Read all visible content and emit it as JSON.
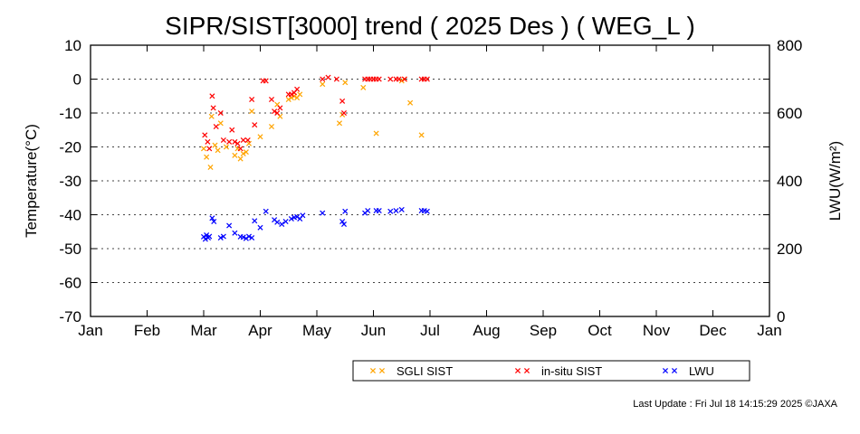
{
  "chart_data": {
    "type": "scatter",
    "title": "SIPR/SIST[3000] trend ( 2025 Des ) ( WEG_L )",
    "ylabel_left": "Temperature(°C)",
    "ylabel_right": "LWU(W/m²)",
    "ylim_left": [
      -70,
      10
    ],
    "ylim_right": [
      0,
      800
    ],
    "yticks_left": [
      10,
      0,
      -10,
      -20,
      -30,
      -40,
      -50,
      -60,
      -70
    ],
    "yticks_right": [
      800,
      600,
      400,
      200,
      0
    ],
    "x_ticks": [
      "Jan",
      "Feb",
      "Mar",
      "Apr",
      "May",
      "Jun",
      "Jul",
      "Aug",
      "Sep",
      "Oct",
      "Nov",
      "Dec",
      "Jan"
    ],
    "grid": "horizontal dotted",
    "legend": [
      "SGLI SIST",
      "in-situ SIST",
      "LWU"
    ],
    "legend_position": "bottom-right",
    "series": [
      {
        "name": "SGLI SIST",
        "color": "#ffa500",
        "axis": "left",
        "points": [
          [
            2.0,
            -20.5
          ],
          [
            2.05,
            -23.0
          ],
          [
            2.12,
            -26.0
          ],
          [
            2.14,
            -11.0
          ],
          [
            2.2,
            -19.5
          ],
          [
            2.25,
            -21.0
          ],
          [
            2.3,
            -13.0
          ],
          [
            2.4,
            -20.0
          ],
          [
            2.55,
            -22.5
          ],
          [
            2.6,
            -20.5
          ],
          [
            2.65,
            -23.5
          ],
          [
            2.7,
            -22.0
          ],
          [
            2.75,
            -21.5
          ],
          [
            2.8,
            -19.0
          ],
          [
            2.85,
            -9.5
          ],
          [
            3.0,
            -17.0
          ],
          [
            3.2,
            -14.0
          ],
          [
            3.3,
            -7.5
          ],
          [
            3.35,
            -11.0
          ],
          [
            3.5,
            -6.0
          ],
          [
            3.55,
            -5.5
          ],
          [
            3.6,
            -5.0
          ],
          [
            3.65,
            -5.5
          ],
          [
            3.7,
            -4.5
          ],
          [
            4.1,
            -1.5
          ],
          [
            4.4,
            -13.0
          ],
          [
            4.45,
            -10.5
          ],
          [
            4.5,
            -1.0
          ],
          [
            4.82,
            -2.5
          ],
          [
            5.05,
            -16.0
          ],
          [
            5.5,
            -0.5
          ],
          [
            5.55,
            0.0
          ],
          [
            5.65,
            -7.0
          ],
          [
            5.85,
            -16.5
          ]
        ]
      },
      {
        "name": "in-situ SIST",
        "color": "#ff0000",
        "axis": "left",
        "points": [
          [
            2.02,
            -16.5
          ],
          [
            2.07,
            -18.5
          ],
          [
            2.1,
            -20.5
          ],
          [
            2.15,
            -5.0
          ],
          [
            2.17,
            -8.5
          ],
          [
            2.22,
            -14.0
          ],
          [
            2.3,
            -10.0
          ],
          [
            2.35,
            -18.0
          ],
          [
            2.45,
            -18.5
          ],
          [
            2.5,
            -15.0
          ],
          [
            2.55,
            -18.5
          ],
          [
            2.6,
            -19.0
          ],
          [
            2.65,
            -20.5
          ],
          [
            2.7,
            -18.0
          ],
          [
            2.78,
            -18.0
          ],
          [
            2.85,
            -6.0
          ],
          [
            2.9,
            -13.5
          ],
          [
            3.05,
            -0.5
          ],
          [
            3.1,
            -0.5
          ],
          [
            3.2,
            -6.0
          ],
          [
            3.25,
            -9.5
          ],
          [
            3.3,
            -10.0
          ],
          [
            3.35,
            -8.5
          ],
          [
            3.5,
            -4.5
          ],
          [
            3.55,
            -4.5
          ],
          [
            3.6,
            -4.0
          ],
          [
            3.65,
            -3.0
          ],
          [
            4.1,
            0.0
          ],
          [
            4.2,
            0.5
          ],
          [
            4.35,
            0.0
          ],
          [
            4.45,
            -6.5
          ],
          [
            4.48,
            -10.0
          ],
          [
            4.85,
            0.0
          ],
          [
            4.9,
            0.0
          ],
          [
            4.95,
            0.0
          ],
          [
            5.0,
            0.0
          ],
          [
            5.05,
            0.0
          ],
          [
            5.1,
            0.0
          ],
          [
            5.3,
            0.0
          ],
          [
            5.4,
            0.0
          ],
          [
            5.45,
            0.0
          ],
          [
            5.55,
            0.0
          ],
          [
            5.85,
            0.0
          ],
          [
            5.9,
            0.0
          ],
          [
            5.95,
            0.0
          ]
        ]
      },
      {
        "name": "LWU",
        "color": "#0000ff",
        "axis": "right",
        "points": [
          [
            2.0,
            235
          ],
          [
            2.03,
            228
          ],
          [
            2.05,
            240
          ],
          [
            2.08,
            232
          ],
          [
            2.1,
            236
          ],
          [
            2.15,
            290
          ],
          [
            2.18,
            280
          ],
          [
            2.3,
            232
          ],
          [
            2.35,
            236
          ],
          [
            2.45,
            268
          ],
          [
            2.55,
            246
          ],
          [
            2.65,
            235
          ],
          [
            2.7,
            234
          ],
          [
            2.75,
            230
          ],
          [
            2.8,
            236
          ],
          [
            2.85,
            232
          ],
          [
            2.9,
            282
          ],
          [
            3.0,
            262
          ],
          [
            3.1,
            310
          ],
          [
            3.25,
            285
          ],
          [
            3.3,
            278
          ],
          [
            3.38,
            272
          ],
          [
            3.45,
            280
          ],
          [
            3.55,
            288
          ],
          [
            3.6,
            292
          ],
          [
            3.65,
            294
          ],
          [
            3.7,
            288
          ],
          [
            3.75,
            298
          ],
          [
            4.1,
            305
          ],
          [
            4.45,
            280
          ],
          [
            4.48,
            272
          ],
          [
            4.5,
            310
          ],
          [
            4.85,
            305
          ],
          [
            4.9,
            312
          ],
          [
            5.05,
            312
          ],
          [
            5.1,
            312
          ],
          [
            5.3,
            310
          ],
          [
            5.4,
            312
          ],
          [
            5.5,
            315
          ],
          [
            5.85,
            312
          ],
          [
            5.9,
            312
          ],
          [
            5.95,
            310
          ]
        ]
      }
    ]
  },
  "footer": "Last Update : Fri Jul 18 14:15:29 2025  ©JAXA"
}
